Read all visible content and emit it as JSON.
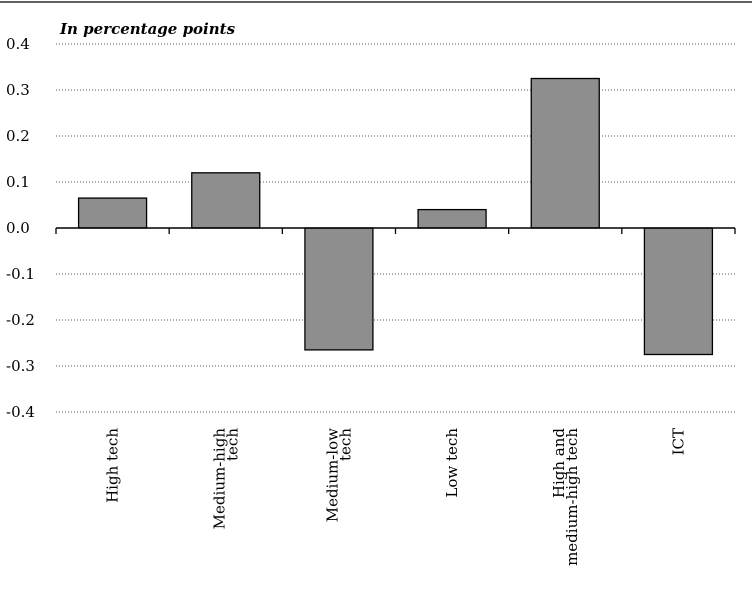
{
  "chart_data": {
    "type": "bar",
    "subtitle": "In percentage points",
    "categories": [
      [
        "High tech"
      ],
      [
        "Medium-high",
        "tech"
      ],
      [
        "Medium-low",
        "tech"
      ],
      [
        "Low tech"
      ],
      [
        "High and",
        "medium-high tech"
      ],
      [
        "ICT"
      ]
    ],
    "values": [
      0.065,
      0.12,
      -0.265,
      0.04,
      0.325,
      -0.275
    ],
    "ylim": [
      -0.4,
      0.4
    ],
    "yticks": [
      "0.4",
      "0.3",
      "0.2",
      "0.1",
      "0.0",
      "-0.1",
      "-0.2",
      "-0.3",
      "-0.4"
    ],
    "ytick_values": [
      0.4,
      0.3,
      0.2,
      0.1,
      0.0,
      -0.1,
      -0.2,
      -0.3,
      -0.4
    ],
    "gridlines": true,
    "colors": {
      "bar": "#8e8e8e",
      "bar_edge": "#000000"
    }
  }
}
